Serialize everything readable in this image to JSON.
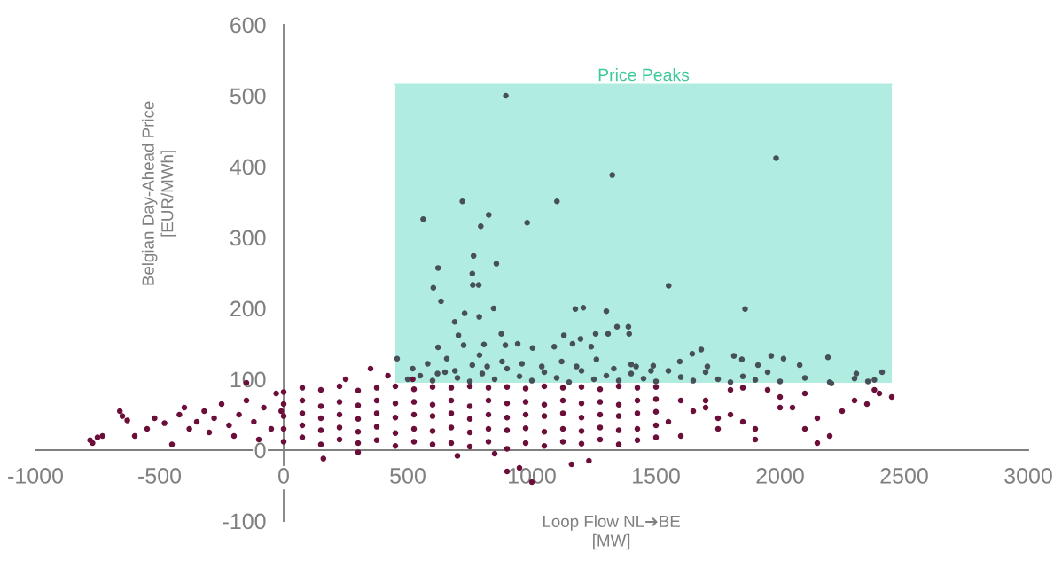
{
  "chart_data": {
    "type": "scatter",
    "xlabel": "Loop Flow NL➔BE\n[MW]",
    "ylabel": "Belgian Day-Ahead Price\n[EUR/MWh]",
    "xlim": [
      -1000,
      3000
    ],
    "xticks": [
      -1000,
      -500,
      0,
      500,
      1000,
      1500,
      2000,
      2500,
      3000
    ],
    "ylim": [
      -100,
      600
    ],
    "yticks": [
      -100,
      0,
      100,
      200,
      300,
      400,
      500,
      600
    ],
    "grid": false,
    "marker": "circle",
    "series": [
      {
        "type": "line",
        "name": "Price Peaks",
        "color": "#b0ede0",
        "marker": "none",
        "x": [
          450,
          2450
        ],
        "values": [
          516,
          516
        ],
        "lower": [
          95,
          95
        ],
        "upper": [
          516,
          516
        ]
      },
      {
        "color": "#6b0f3a",
        "x": [
          -780,
          -770,
          -750,
          -730,
          -660,
          -650,
          -630,
          -600,
          -550,
          -520,
          -480,
          -450,
          -420,
          -400,
          -380,
          -350,
          -320,
          -300,
          -280,
          -250,
          -220,
          -200,
          -180,
          -150,
          -150,
          -120,
          -100,
          -80,
          -50,
          -30,
          -10,
          160,
          900,
          950,
          1000,
          1160,
          1230,
          850,
          300,
          700,
          350,
          420,
          250,
          520,
          1600,
          1700,
          1800,
          1850,
          1900,
          1950,
          2000,
          2050,
          2100,
          2150,
          2200,
          2250,
          2300,
          2350,
          2400,
          2450,
          2380,
          1750,
          1900,
          2000,
          2100,
          2150,
          1800,
          1850,
          0,
          0,
          0,
          0,
          0,
          75,
          75,
          75,
          75,
          75,
          150,
          150,
          150,
          150,
          150,
          225,
          225,
          225,
          225,
          225,
          300,
          300,
          300,
          300,
          300,
          375,
          375,
          375,
          375,
          375,
          450,
          450,
          450,
          450,
          450,
          525,
          525,
          525,
          525,
          525,
          600,
          600,
          600,
          600,
          600,
          675,
          675,
          675,
          675,
          675,
          750,
          750,
          750,
          750,
          750,
          825,
          825,
          825,
          825,
          825,
          900,
          900,
          900,
          900,
          900,
          975,
          975,
          975,
          975,
          975,
          1050,
          1050,
          1050,
          1050,
          1050,
          1125,
          1125,
          1125,
          1125,
          1125,
          1200,
          1200,
          1200,
          1200,
          1200,
          1275,
          1275,
          1275,
          1275,
          1275,
          1350,
          1350,
          1350,
          1350,
          1350,
          1425,
          1425,
          1425,
          1425,
          1425,
          1500,
          1500,
          1500,
          1500,
          1500,
          1550,
          1650,
          1700,
          1600,
          1750
        ],
        "values": [
          14,
          10,
          18,
          20,
          55,
          48,
          42,
          20,
          30,
          45,
          38,
          8,
          50,
          60,
          30,
          40,
          55,
          25,
          45,
          65,
          35,
          20,
          50,
          95,
          70,
          40,
          15,
          60,
          30,
          80,
          55,
          -12,
          -30,
          -25,
          -45,
          -20,
          -15,
          -5,
          -3,
          -8,
          115,
          105,
          100,
          100,
          70,
          60,
          50,
          40,
          30,
          85,
          75,
          60,
          80,
          45,
          20,
          55,
          70,
          65,
          80,
          75,
          85,
          30,
          15,
          60,
          30,
          10,
          85,
          88,
          12,
          30,
          48,
          65,
          82,
          18,
          35,
          52,
          70,
          88,
          8,
          28,
          45,
          62,
          85,
          15,
          32,
          50,
          68,
          90,
          10,
          26,
          44,
          63,
          84,
          14,
          33,
          52,
          70,
          88,
          6,
          24,
          46,
          66,
          90,
          12,
          30,
          50,
          68,
          86,
          8,
          27,
          48,
          64,
          89,
          10,
          32,
          52,
          70,
          88,
          5,
          25,
          44,
          62,
          90,
          12,
          30,
          50,
          70,
          88,
          2,
          28,
          46,
          66,
          89,
          10,
          31,
          50,
          68,
          87,
          6,
          26,
          48,
          64,
          90,
          12,
          30,
          52,
          70,
          88,
          9,
          27,
          46,
          66,
          89,
          15,
          32,
          50,
          68,
          86,
          8,
          28,
          48,
          64,
          90,
          14,
          30,
          52,
          70,
          88,
          18,
          35,
          54,
          72,
          89,
          40,
          55,
          70,
          20,
          45
        ]
      },
      {
        "color": "#474f58",
        "x": [
          895,
          1984,
          1324,
          720,
          1101,
          562,
          826,
          794,
          981,
          765,
          622,
          857,
          760,
          603,
          762,
          786,
          634,
          1551,
          1859,
          729,
          689,
          788,
          846,
          1175,
          1207,
          1300,
          704,
          877,
          1343,
          1389,
          1392,
          1257,
          1307,
          622,
          725,
          789,
          807,
          893,
          943,
          1003,
          1090,
          1129,
          1164,
          1196,
          1239,
          457,
          657,
          1682,
          1646,
          1814,
          1964,
          2014,
          2193,
          2411,
          2307,
          2079,
          1911,
          1596,
          1707,
          1400,
          1489,
          1846,
          2207,
          2354,
          500,
          550,
          600,
          650,
          700,
          750,
          800,
          850,
          900,
          950,
          1000,
          1050,
          1100,
          1150,
          1200,
          1250,
          1300,
          1350,
          1400,
          1450,
          1500,
          1550,
          1600,
          1650,
          1700,
          1750,
          1800,
          1850,
          1900,
          1950,
          2000,
          2100,
          2200,
          2300,
          2380,
          690,
          760,
          820,
          880,
          960,
          1040,
          1120,
          1180,
          1260,
          1330,
          1420,
          1480,
          520,
          580,
          620
        ],
        "values": [
          500,
          412,
          388,
          351,
          351,
          326,
          332,
          316,
          321,
          274,
          257,
          263,
          249,
          229,
          233,
          233,
          210,
          232,
          199,
          193,
          181,
          188,
          200,
          199,
          201,
          196,
          162,
          164,
          174,
          174,
          164,
          164,
          164,
          145,
          148,
          134,
          149,
          148,
          150,
          144,
          146,
          162,
          150,
          157,
          146,
          129,
          129,
          142,
          136,
          133,
          133,
          129,
          131,
          110,
          108,
          120,
          120,
          125,
          118,
          121,
          119,
          128,
          94,
          97,
          100,
          105,
          98,
          110,
          102,
          97,
          108,
          100,
          115,
          104,
          98,
          110,
          102,
          96,
          112,
          100,
          105,
          98,
          108,
          101,
          97,
          112,
          103,
          98,
          110,
          100,
          96,
          104,
          99,
          110,
          97,
          102,
          96,
          101,
          99,
          112,
          120,
          118,
          125,
          122,
          118,
          125,
          118,
          128,
          115,
          118,
          112,
          115,
          122,
          108
        ]
      }
    ]
  }
}
